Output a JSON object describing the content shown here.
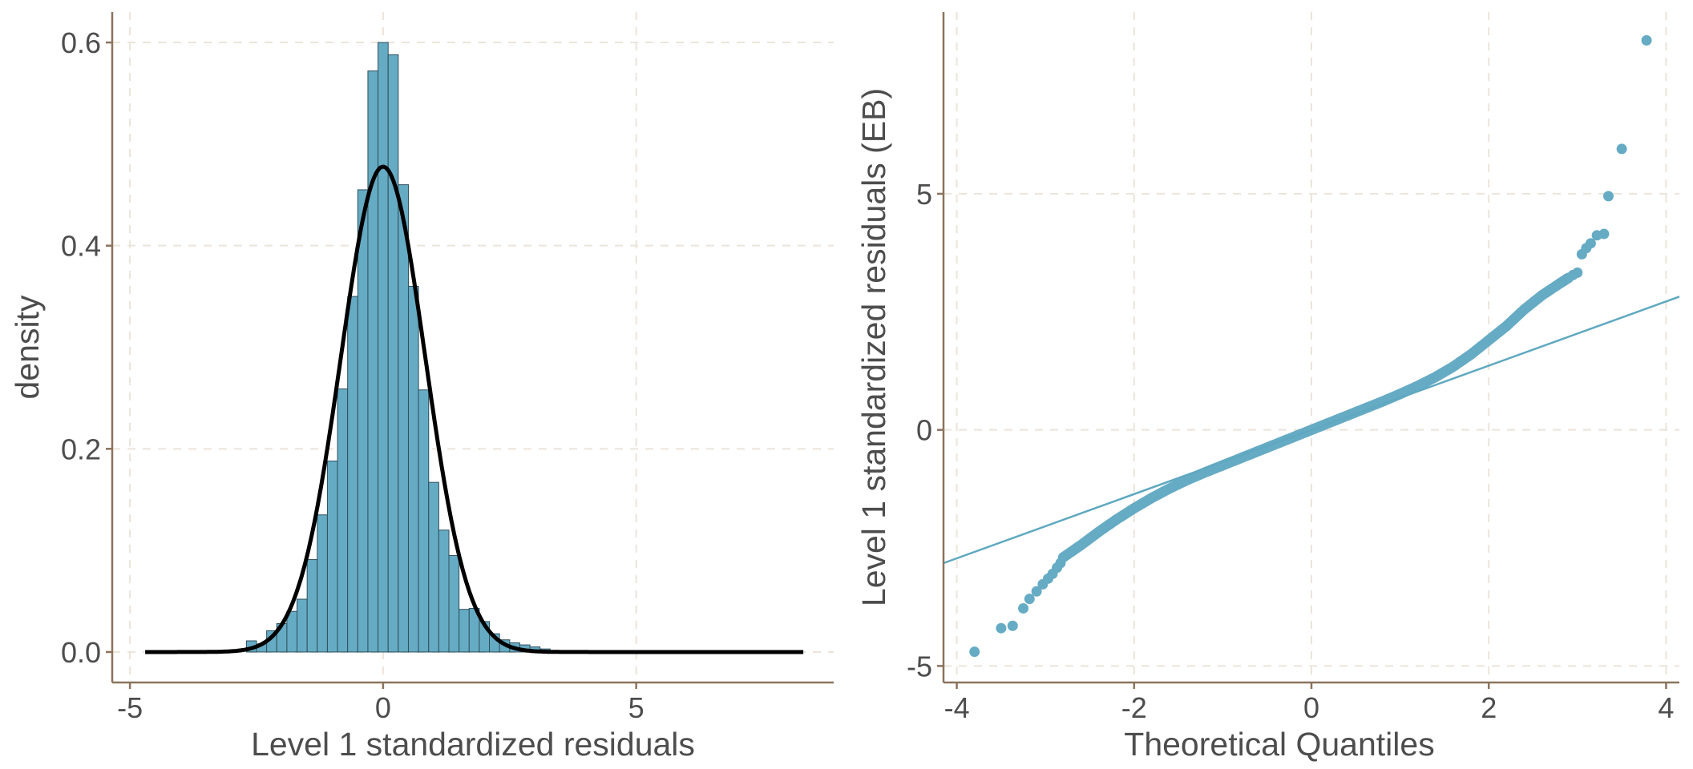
{
  "chart_data": [
    {
      "type": "bar",
      "subtype": "histogram-with-density-curve",
      "title": "",
      "xlabel": "Level 1 standardized residuals",
      "ylabel": "density",
      "xlim": [
        -5.35,
        8.9
      ],
      "ylim": [
        -0.03,
        0.63
      ],
      "x_ticks": [
        -5,
        0,
        5
      ],
      "y_ticks": [
        0.0,
        0.2,
        0.4,
        0.6
      ],
      "x_tick_labels": [
        "-5",
        "0",
        "5"
      ],
      "y_tick_labels": [
        "0.0",
        "0.2",
        "0.4",
        "0.6"
      ],
      "grid": true,
      "grid_style": "dashed",
      "bin_width": 0.2,
      "bins": [
        {
          "x0": -2.7,
          "x1": -2.5,
          "density": 0.011
        },
        {
          "x0": -2.5,
          "x1": -2.3,
          "density": 0.008
        },
        {
          "x0": -2.3,
          "x1": -2.1,
          "density": 0.021
        },
        {
          "x0": -2.1,
          "x1": -1.9,
          "density": 0.028
        },
        {
          "x0": -1.9,
          "x1": -1.7,
          "density": 0.04
        },
        {
          "x0": -1.7,
          "x1": -1.5,
          "density": 0.052
        },
        {
          "x0": -1.5,
          "x1": -1.3,
          "density": 0.091
        },
        {
          "x0": -1.3,
          "x1": -1.1,
          "density": 0.135
        },
        {
          "x0": -1.1,
          "x1": -0.9,
          "density": 0.188
        },
        {
          "x0": -0.9,
          "x1": -0.7,
          "density": 0.259
        },
        {
          "x0": -0.7,
          "x1": -0.5,
          "density": 0.35
        },
        {
          "x0": -0.5,
          "x1": -0.3,
          "density": 0.455
        },
        {
          "x0": -0.3,
          "x1": -0.1,
          "density": 0.572
        },
        {
          "x0": -0.1,
          "x1": 0.1,
          "density": 0.6
        },
        {
          "x0": 0.1,
          "x1": 0.3,
          "density": 0.588
        },
        {
          "x0": 0.3,
          "x1": 0.5,
          "density": 0.46
        },
        {
          "x0": 0.5,
          "x1": 0.7,
          "density": 0.36
        },
        {
          "x0": 0.7,
          "x1": 0.9,
          "density": 0.258
        },
        {
          "x0": 0.9,
          "x1": 1.1,
          "density": 0.167
        },
        {
          "x0": 1.1,
          "x1": 1.3,
          "density": 0.12
        },
        {
          "x0": 1.3,
          "x1": 1.5,
          "density": 0.095
        },
        {
          "x0": 1.5,
          "x1": 1.7,
          "density": 0.042
        },
        {
          "x0": 1.7,
          "x1": 1.9,
          "density": 0.043
        },
        {
          "x0": 1.9,
          "x1": 2.1,
          "density": 0.03
        },
        {
          "x0": 2.1,
          "x1": 2.3,
          "density": 0.018
        },
        {
          "x0": 2.3,
          "x1": 2.5,
          "density": 0.012
        },
        {
          "x0": 2.5,
          "x1": 2.7,
          "density": 0.009
        },
        {
          "x0": 2.7,
          "x1": 2.9,
          "density": 0.007
        },
        {
          "x0": 2.9,
          "x1": 3.1,
          "density": 0.005
        },
        {
          "x0": 3.1,
          "x1": 3.3,
          "density": 0.003
        }
      ],
      "density_curve": {
        "distribution": "normal",
        "mean": 0,
        "sd": 0.835,
        "x_range": [
          -4.7,
          8.3
        ]
      },
      "colors": {
        "bar_fill": "#66abc4",
        "bar_stroke": "#2f4f5c",
        "curve": "#000000",
        "axis": "#8b735d",
        "grid": "#ece4da",
        "text": "#4d4d4d"
      }
    },
    {
      "type": "scatter",
      "subtype": "qq-plot",
      "title": "",
      "xlabel": "Theoretical Quantiles",
      "ylabel": "Level 1 standardized residuals (EB)",
      "xlim": [
        -4.15,
        4.15
      ],
      "ylim": [
        -5.35,
        8.85
      ],
      "x_ticks": [
        -4,
        -2,
        0,
        2,
        4
      ],
      "y_ticks": [
        -5,
        0,
        5
      ],
      "x_tick_labels": [
        "-4",
        "-2",
        "0",
        "2",
        "4"
      ],
      "y_tick_labels": [
        "-5",
        "0",
        "5"
      ],
      "grid": true,
      "grid_style": "dashed",
      "reference_line": {
        "intercept": 0,
        "slope": 0.68
      },
      "quantile_curve": [
        [
          -2.8,
          -2.7
        ],
        [
          -2.6,
          -2.44
        ],
        [
          -2.4,
          -2.16
        ],
        [
          -2.2,
          -1.9
        ],
        [
          -2.0,
          -1.66
        ],
        [
          -1.8,
          -1.44
        ],
        [
          -1.6,
          -1.24
        ],
        [
          -1.4,
          -1.06
        ],
        [
          -1.2,
          -0.9
        ],
        [
          -1.0,
          -0.75
        ],
        [
          -0.8,
          -0.6
        ],
        [
          -0.6,
          -0.45
        ],
        [
          -0.4,
          -0.3
        ],
        [
          -0.2,
          -0.15
        ],
        [
          0.0,
          0.0
        ],
        [
          0.2,
          0.15
        ],
        [
          0.4,
          0.3
        ],
        [
          0.6,
          0.45
        ],
        [
          0.8,
          0.6
        ],
        [
          1.0,
          0.76
        ],
        [
          1.2,
          0.93
        ],
        [
          1.4,
          1.12
        ],
        [
          1.6,
          1.34
        ],
        [
          1.8,
          1.6
        ],
        [
          2.0,
          1.9
        ],
        [
          2.2,
          2.2
        ],
        [
          2.4,
          2.55
        ],
        [
          2.6,
          2.85
        ],
        [
          2.8,
          3.1
        ],
        [
          2.9,
          3.22
        ]
      ],
      "tail_points": [
        [
          -3.8,
          -4.7
        ],
        [
          -3.5,
          -4.2
        ],
        [
          -3.37,
          -4.15
        ],
        [
          -3.25,
          -3.78
        ],
        [
          -3.18,
          -3.58
        ],
        [
          -3.1,
          -3.42
        ],
        [
          -3.03,
          -3.27
        ],
        [
          -2.97,
          -3.15
        ],
        [
          -2.92,
          -3.05
        ],
        [
          -2.87,
          -2.92
        ],
        [
          -2.83,
          -2.82
        ],
        [
          2.95,
          3.28
        ],
        [
          3.0,
          3.33
        ],
        [
          3.05,
          3.72
        ],
        [
          3.1,
          3.85
        ],
        [
          3.15,
          3.95
        ],
        [
          3.22,
          4.12
        ],
        [
          3.3,
          4.15
        ],
        [
          3.35,
          4.95
        ],
        [
          3.5,
          5.95
        ],
        [
          3.78,
          8.25
        ]
      ],
      "colors": {
        "points": "#66abc4",
        "reference_line": "#5fa8c0",
        "axis": "#8b735d",
        "grid": "#ece4da",
        "text": "#4d4d4d"
      }
    }
  ]
}
